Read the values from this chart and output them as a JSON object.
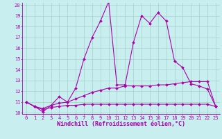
{
  "xlabel": "Windchill (Refroidissement éolien,°C)",
  "hours": [
    0,
    1,
    2,
    3,
    4,
    5,
    6,
    7,
    8,
    9,
    10,
    11,
    12,
    13,
    14,
    15,
    16,
    17,
    18,
    19,
    20,
    21,
    22,
    23
  ],
  "line1": [
    11.0,
    10.6,
    10.1,
    10.7,
    11.5,
    11.0,
    12.3,
    15.0,
    17.0,
    18.5,
    20.3,
    12.6,
    12.6,
    16.5,
    19.0,
    18.3,
    19.3,
    18.5,
    14.8,
    14.2,
    12.7,
    12.5,
    12.2,
    10.6
  ],
  "line2": [
    11.0,
    10.6,
    10.4,
    10.7,
    10.9,
    11.0,
    11.3,
    11.6,
    11.9,
    12.1,
    12.3,
    12.3,
    12.5,
    12.5,
    12.5,
    12.5,
    12.6,
    12.6,
    12.7,
    12.8,
    12.9,
    12.9,
    12.9,
    10.6
  ],
  "line3": [
    11.0,
    10.6,
    10.3,
    10.5,
    10.6,
    10.7,
    10.7,
    10.8,
    10.8,
    10.8,
    10.8,
    10.8,
    10.8,
    10.8,
    10.8,
    10.8,
    10.8,
    10.8,
    10.8,
    10.8,
    10.8,
    10.8,
    10.8,
    10.6
  ],
  "ylim_min": 10,
  "ylim_max": 20,
  "xlim_min": 0,
  "xlim_max": 23,
  "yticks": [
    10,
    11,
    12,
    13,
    14,
    15,
    16,
    17,
    18,
    19,
    20
  ],
  "xticks": [
    0,
    1,
    2,
    3,
    4,
    5,
    6,
    7,
    8,
    9,
    10,
    11,
    12,
    13,
    14,
    15,
    16,
    17,
    18,
    19,
    20,
    21,
    22,
    23
  ],
  "line_color": "#aa00aa",
  "bg_color": "#c8eef0",
  "grid_color": "#99ccbb",
  "markersize": 2.0,
  "linewidth": 0.8,
  "tick_fontsize": 5.0,
  "xlabel_fontsize": 6.0,
  "fig_width": 3.2,
  "fig_height": 2.0,
  "dpi": 100
}
